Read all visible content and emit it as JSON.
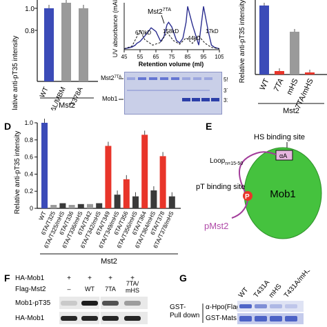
{
  "panel_labels": {
    "D": "D",
    "E": "E",
    "F": "F",
    "G": "G"
  },
  "panel_A": {
    "ylabel": "Relative anti-pT35 intensity",
    "yticks": [
      "1.0",
      "0.8"
    ],
    "categories": [
      "WT",
      "ΔL/MBM",
      "T378A"
    ],
    "group_label": "Mst2"
  },
  "panel_B": {
    "peak_labels": [
      "670kD",
      "158kD",
      "44kD",
      "17kD"
    ],
    "mst2_label": "Mst2",
    "mst2_sup": "7TA",
    "ylabel": "UV absorbance (mAU)",
    "xticks": [
      "45",
      "55",
      "65",
      "75",
      "85",
      "95",
      "105"
    ],
    "xlabel": "Retention volume (ml)",
    "gel_labels": {
      "mst2": "Mst2",
      "mst2_sup": "7TA",
      "mob1": "Mob1"
    },
    "gel_markers": [
      "55",
      "37",
      "31"
    ]
  },
  "panel_C": {
    "ylabel": "Relative anti-pT35 intensity",
    "categories": [
      "WT",
      "7TA",
      "mHS",
      "7TA/mHS"
    ],
    "group_label": "Mst2"
  },
  "panel_D": {
    "ylabel": "Relative anti-pT35 intensity",
    "yticks": [
      "1.0",
      "0.8",
      "0.6",
      "0.4",
      "0.2",
      "0"
    ],
    "group_label": "Mst2"
  },
  "panel_E": {
    "hs_site": "HS binding  site",
    "alpha_a": "αA",
    "loop": "Loop",
    "loop_sub": "n=15-50",
    "pt_site": "pT binding site",
    "p": "P",
    "mob1": "Mob1",
    "pmst2": "pMst2"
  },
  "panel_F": {
    "row_labels": [
      "HA-Mob1",
      "Flag-Mst2",
      "Mob1-pT35",
      "HA-Mob1"
    ],
    "col_values_mob1": [
      "+",
      "+",
      "+",
      "+"
    ],
    "col_values_mst2": [
      "–",
      "WT",
      "7TA",
      "7TA/\nmHS"
    ]
  },
  "panel_G": {
    "col_labels": [
      "WT",
      "T431A",
      "mHS",
      "T431A/mHS"
    ],
    "row_labels": [
      "α-Hpo(Flag)",
      "GST-Mats"
    ],
    "side_label_1": "GST-",
    "side_label_2": "Pull down"
  },
  "colors": {
    "blue": "#3b4bb8",
    "red": "#e8352a",
    "dark": "#3a3a3a",
    "gray": "#9a9a9a",
    "green": "#3fbf3a",
    "purple": "#b04aa8",
    "gel": "#3f57c2"
  },
  "chart_data": [
    {
      "type": "bar",
      "title": "",
      "ylabel": "Relative anti-pT35 intensity",
      "xlabel": "Mst2",
      "categories": [
        "WT",
        "ΔL/MBM",
        "T378A"
      ],
      "values": [
        1.0,
        1.05,
        1.0
      ]
    },
    {
      "type": "line",
      "ylabel": "UV absorbance (mAU)",
      "xlabel": "Retention volume (ml)",
      "xlim": [
        45,
        105
      ],
      "series": [
        {
          "name": "",
          "x": [
            45,
            48,
            50,
            52,
            53,
            55,
            58,
            62,
            65,
            68,
            70,
            72,
            73,
            75,
            78,
            80,
            82,
            84,
            85,
            88,
            92,
            95,
            98,
            100,
            102,
            105
          ],
          "y": [
            0.02,
            0.04,
            0.06,
            0.1,
            0.14,
            0.18,
            0.3,
            0.48,
            0.4,
            0.18,
            0.28,
            0.55,
            0.6,
            0.5,
            0.2,
            0.15,
            0.25,
            0.6,
            0.95,
            0.55,
            0.1,
            0.95,
            0.4,
            0.1,
            0.05,
            0.02
          ]
        }
      ]
    },
    {
      "type": "bar",
      "ylabel": "Relative anti-pT35 intensity",
      "xlabel": "Mst2",
      "categories": [
        "WT",
        "7TA",
        "mHS",
        "7TA/mHS"
      ],
      "values": [
        1.0,
        0.05,
        0.62,
        0.03
      ]
    },
    {
      "type": "bar",
      "ylabel": "Relative anti-pT35 intensity",
      "xlabel": "Mst2",
      "ylim": [
        0,
        1.0
      ],
      "categories": [
        "WT",
        "6TA/T325",
        "6TA/T325/mHS",
        "6TA/T336",
        "6TA/T336/mHS",
        "6TA/T342",
        "6TA/T342/mHS",
        "6TA/T349",
        "6TA/T349/mHS",
        "6TA/T356",
        "6TA/T356/mHS",
        "6TA/T364",
        "6TA/T364/mHS",
        "6TA/T378",
        "6TA/T378/mHS"
      ],
      "values": [
        1.0,
        0.04,
        0.06,
        0.04,
        0.05,
        0.05,
        0.06,
        0.73,
        0.16,
        0.34,
        0.14,
        0.86,
        0.21,
        0.61,
        0.14
      ]
    }
  ]
}
